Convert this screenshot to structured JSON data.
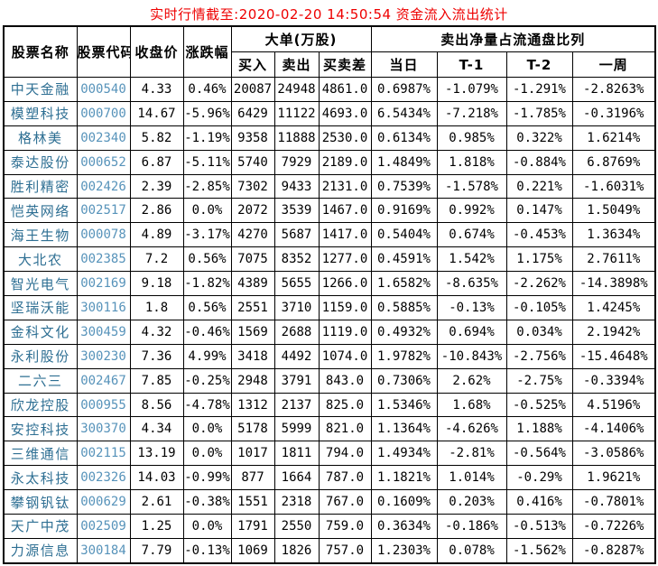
{
  "title": "实时行情截至:2020-02-20 14:50:54 资金流入流出统计",
  "colors": {
    "title_text": "#ee0000",
    "stock_name_text": "#2e6f93",
    "stock_code_text": "#5793ba",
    "data_text": "#000000",
    "border": "#000000",
    "background": "#ffffff"
  },
  "table": {
    "headers": {
      "stock_name": "股票名称",
      "stock_code": "股票代码",
      "close_price": "收盘价",
      "change_pct": "涨跌幅",
      "big_order_group": "大单(万股)",
      "sell_net_group": "卖出净量占流通盘比列",
      "buy": "买入",
      "sell": "卖出",
      "buy_sell_diff": "买卖差",
      "day": "当日",
      "t_minus_1": "T-1",
      "t_minus_2": "T-2",
      "week": "一周"
    },
    "col_names": [
      "stock-name",
      "stock-code",
      "close-price",
      "change-pct",
      "buy-volume",
      "sell-volume",
      "buy-sell-diff",
      "ratio-day",
      "ratio-t1",
      "ratio-t2",
      "ratio-week"
    ],
    "rows": [
      [
        "中天金融",
        "000540",
        "4.33",
        "0.46%",
        "20087",
        "24948",
        "4861.0",
        "0.6987%",
        "-1.079%",
        "-1.291%",
        "-2.8263%"
      ],
      [
        "模塑科技",
        "000700",
        "14.67",
        "-5.96%",
        "6429",
        "11122",
        "4693.0",
        "6.5434%",
        "-7.218%",
        "-1.785%",
        "-0.3196%"
      ],
      [
        "格林美",
        "002340",
        "5.82",
        "-1.19%",
        "9358",
        "11888",
        "2530.0",
        "0.6134%",
        "0.985%",
        "0.322%",
        "1.6214%"
      ],
      [
        "泰达股份",
        "000652",
        "6.87",
        "-5.11%",
        "5740",
        "7929",
        "2189.0",
        "1.4849%",
        "1.818%",
        "-0.884%",
        "6.8769%"
      ],
      [
        "胜利精密",
        "002426",
        "2.39",
        "-2.85%",
        "7302",
        "9433",
        "2131.0",
        "0.7539%",
        "-1.578%",
        "0.221%",
        "-1.6031%"
      ],
      [
        "恺英网络",
        "002517",
        "2.86",
        "0.0%",
        "2072",
        "3539",
        "1467.0",
        "0.9169%",
        "0.992%",
        "0.147%",
        "1.5049%"
      ],
      [
        "海王生物",
        "000078",
        "4.89",
        "-3.17%",
        "4270",
        "5687",
        "1417.0",
        "0.5404%",
        "0.674%",
        "-0.453%",
        "1.3634%"
      ],
      [
        "大北农",
        "002385",
        "7.2",
        "0.56%",
        "7075",
        "8352",
        "1277.0",
        "0.4591%",
        "1.542%",
        "1.175%",
        "2.7611%"
      ],
      [
        "智光电气",
        "002169",
        "9.18",
        "-1.82%",
        "4389",
        "5655",
        "1266.0",
        "1.6582%",
        "-8.635%",
        "-2.262%",
        "-14.3898%"
      ],
      [
        "坚瑞沃能",
        "300116",
        "1.8",
        "0.56%",
        "2551",
        "3710",
        "1159.0",
        "0.5885%",
        "-0.13%",
        "-0.105%",
        "1.4245%"
      ],
      [
        "金科文化",
        "300459",
        "4.32",
        "-0.46%",
        "1569",
        "2688",
        "1119.0",
        "0.4932%",
        "0.694%",
        "0.034%",
        "2.1942%"
      ],
      [
        "永利股份",
        "300230",
        "7.36",
        "4.99%",
        "3418",
        "4492",
        "1074.0",
        "1.9782%",
        "-10.843%",
        "-2.756%",
        "-15.4648%"
      ],
      [
        "二六三",
        "002467",
        "7.85",
        "-0.25%",
        "2948",
        "3791",
        "843.0",
        "0.7306%",
        "2.62%",
        "-2.75%",
        "-0.3394%"
      ],
      [
        "欣龙控股",
        "000955",
        "8.56",
        "-4.78%",
        "1312",
        "2137",
        "825.0",
        "1.5346%",
        "1.68%",
        "-0.525%",
        "4.5196%"
      ],
      [
        "安控科技",
        "300370",
        "4.34",
        "0.0%",
        "5178",
        "5999",
        "821.0",
        "1.1364%",
        "-4.626%",
        "1.188%",
        "-4.1406%"
      ],
      [
        "三维通信",
        "002115",
        "13.19",
        "0.0%",
        "1017",
        "1811",
        "794.0",
        "1.4934%",
        "-2.81%",
        "-0.564%",
        "-3.0586%"
      ],
      [
        "永太科技",
        "002326",
        "14.03",
        "-0.99%",
        "877",
        "1664",
        "787.0",
        "1.1821%",
        "1.014%",
        "-0.29%",
        "1.9621%"
      ],
      [
        "攀钢钒钛",
        "000629",
        "2.61",
        "-0.38%",
        "1551",
        "2318",
        "767.0",
        "0.1609%",
        "0.203%",
        "0.416%",
        "-0.7801%"
      ],
      [
        "天广中茂",
        "002509",
        "1.25",
        "0.0%",
        "1791",
        "2550",
        "759.0",
        "0.3634%",
        "-0.186%",
        "-0.513%",
        "-0.7226%"
      ],
      [
        "力源信息",
        "300184",
        "7.79",
        "-0.13%",
        "1069",
        "1826",
        "757.0",
        "1.2303%",
        "0.078%",
        "-1.562%",
        "-0.8287%"
      ]
    ]
  }
}
